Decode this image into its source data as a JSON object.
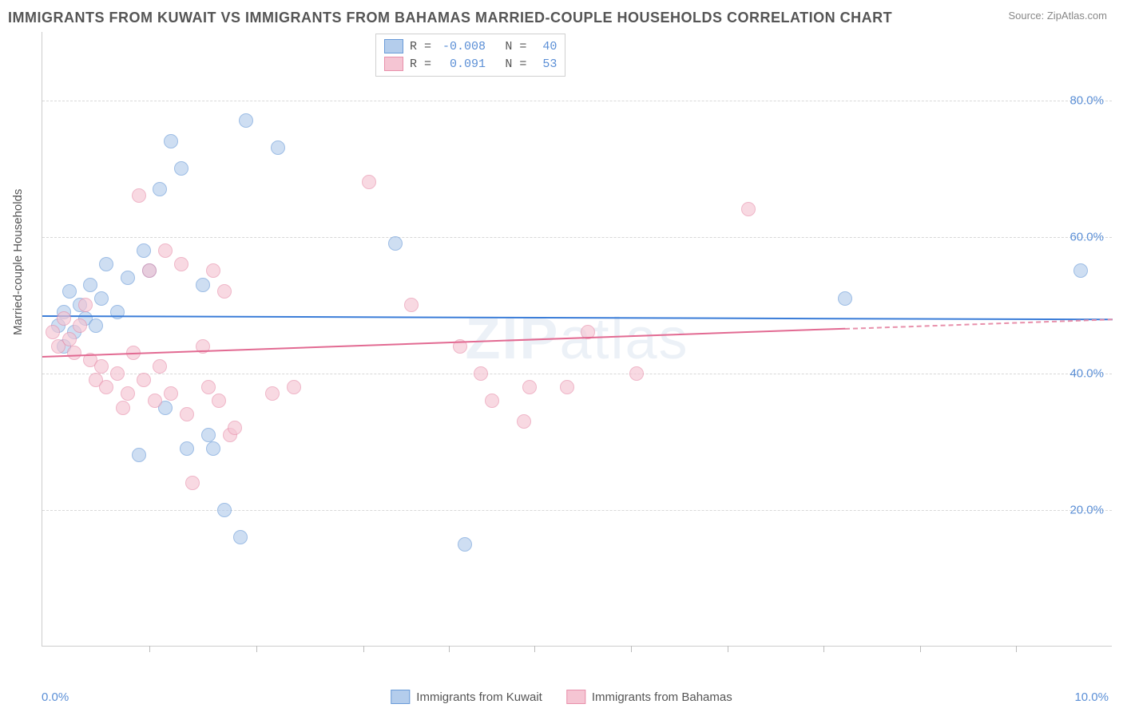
{
  "title": "IMMIGRANTS FROM KUWAIT VS IMMIGRANTS FROM BAHAMAS MARRIED-COUPLE HOUSEHOLDS CORRELATION CHART",
  "source": "Source: ZipAtlas.com",
  "watermark": "ZIPatlas",
  "y_axis": {
    "title": "Married-couple Households",
    "ticks": [
      {
        "value": 20.0,
        "label": "20.0%"
      },
      {
        "value": 40.0,
        "label": "40.0%"
      },
      {
        "value": 60.0,
        "label": "60.0%"
      },
      {
        "value": 80.0,
        "label": "80.0%"
      }
    ],
    "min": 0,
    "max": 90
  },
  "x_axis": {
    "left_label": "0.0%",
    "right_label": "10.0%",
    "min": 0,
    "max": 10,
    "tick_positions": [
      1.0,
      2.0,
      3.0,
      3.8,
      4.6,
      5.5,
      6.4,
      7.3,
      8.2,
      9.1
    ]
  },
  "series": [
    {
      "name": "Immigrants from Kuwait",
      "fill_color": "#b4cdec",
      "stroke_color": "#6a9bd8",
      "line_color": "#3b7dd8",
      "R": "-0.008",
      "N": "40",
      "trend": {
        "y_start": 48.5,
        "y_end": 48.0,
        "x_solid_end": 10.0
      },
      "points": [
        {
          "x": 0.15,
          "y": 47
        },
        {
          "x": 0.2,
          "y": 49
        },
        {
          "x": 0.25,
          "y": 52
        },
        {
          "x": 0.3,
          "y": 46
        },
        {
          "x": 0.35,
          "y": 50
        },
        {
          "x": 0.2,
          "y": 44
        },
        {
          "x": 0.4,
          "y": 48
        },
        {
          "x": 0.45,
          "y": 53
        },
        {
          "x": 0.5,
          "y": 47
        },
        {
          "x": 0.55,
          "y": 51
        },
        {
          "x": 0.6,
          "y": 56
        },
        {
          "x": 0.7,
          "y": 49
        },
        {
          "x": 0.8,
          "y": 54
        },
        {
          "x": 0.9,
          "y": 28
        },
        {
          "x": 0.95,
          "y": 58
        },
        {
          "x": 1.0,
          "y": 55
        },
        {
          "x": 1.1,
          "y": 67
        },
        {
          "x": 1.15,
          "y": 35
        },
        {
          "x": 1.2,
          "y": 74
        },
        {
          "x": 1.3,
          "y": 70
        },
        {
          "x": 1.35,
          "y": 29
        },
        {
          "x": 1.5,
          "y": 53
        },
        {
          "x": 1.55,
          "y": 31
        },
        {
          "x": 1.6,
          "y": 29
        },
        {
          "x": 1.7,
          "y": 20
        },
        {
          "x": 1.85,
          "y": 16
        },
        {
          "x": 1.9,
          "y": 77
        },
        {
          "x": 2.2,
          "y": 73
        },
        {
          "x": 3.3,
          "y": 59
        },
        {
          "x": 3.95,
          "y": 15
        },
        {
          "x": 7.5,
          "y": 51
        },
        {
          "x": 9.7,
          "y": 55
        }
      ]
    },
    {
      "name": "Immigrants from Bahamas",
      "fill_color": "#f5c5d3",
      "stroke_color": "#e890ab",
      "line_color": "#e26a92",
      "R": "0.091",
      "N": "53",
      "trend": {
        "y_start": 42.5,
        "y_end": 48.0,
        "x_solid_end": 7.5
      },
      "points": [
        {
          "x": 0.1,
          "y": 46
        },
        {
          "x": 0.15,
          "y": 44
        },
        {
          "x": 0.2,
          "y": 48
        },
        {
          "x": 0.25,
          "y": 45
        },
        {
          "x": 0.3,
          "y": 43
        },
        {
          "x": 0.35,
          "y": 47
        },
        {
          "x": 0.4,
          "y": 50
        },
        {
          "x": 0.45,
          "y": 42
        },
        {
          "x": 0.5,
          "y": 39
        },
        {
          "x": 0.55,
          "y": 41
        },
        {
          "x": 0.6,
          "y": 38
        },
        {
          "x": 0.7,
          "y": 40
        },
        {
          "x": 0.75,
          "y": 35
        },
        {
          "x": 0.8,
          "y": 37
        },
        {
          "x": 0.85,
          "y": 43
        },
        {
          "x": 0.9,
          "y": 66
        },
        {
          "x": 0.95,
          "y": 39
        },
        {
          "x": 1.0,
          "y": 55
        },
        {
          "x": 1.05,
          "y": 36
        },
        {
          "x": 1.1,
          "y": 41
        },
        {
          "x": 1.15,
          "y": 58
        },
        {
          "x": 1.2,
          "y": 37
        },
        {
          "x": 1.3,
          "y": 56
        },
        {
          "x": 1.35,
          "y": 34
        },
        {
          "x": 1.4,
          "y": 24
        },
        {
          "x": 1.5,
          "y": 44
        },
        {
          "x": 1.55,
          "y": 38
        },
        {
          "x": 1.6,
          "y": 55
        },
        {
          "x": 1.65,
          "y": 36
        },
        {
          "x": 1.7,
          "y": 52
        },
        {
          "x": 1.75,
          "y": 31
        },
        {
          "x": 1.8,
          "y": 32
        },
        {
          "x": 2.15,
          "y": 37
        },
        {
          "x": 2.35,
          "y": 38
        },
        {
          "x": 3.05,
          "y": 68
        },
        {
          "x": 3.45,
          "y": 50
        },
        {
          "x": 3.9,
          "y": 44
        },
        {
          "x": 4.1,
          "y": 40
        },
        {
          "x": 4.2,
          "y": 36
        },
        {
          "x": 4.5,
          "y": 33
        },
        {
          "x": 4.55,
          "y": 38
        },
        {
          "x": 4.9,
          "y": 38
        },
        {
          "x": 5.1,
          "y": 46
        },
        {
          "x": 5.55,
          "y": 40
        },
        {
          "x": 6.6,
          "y": 64
        }
      ]
    }
  ],
  "legend_labels": {
    "R": "R =",
    "N": "N ="
  }
}
